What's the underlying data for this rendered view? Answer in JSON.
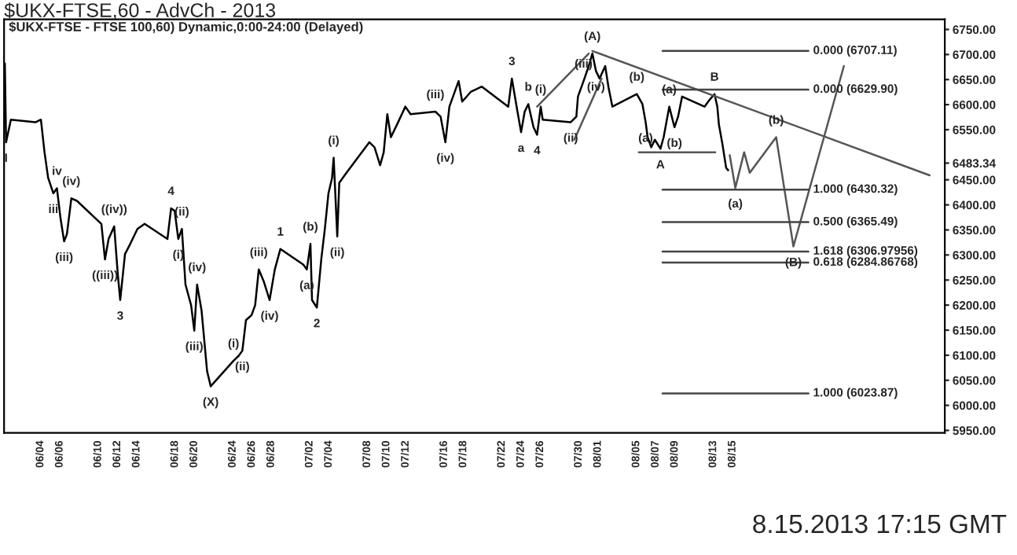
{
  "chart_data": {
    "type": "line",
    "title": "$UKX-FTSE,60 - AdvCh - 2013",
    "subtitle": "$UKX-FTSE - FTSE 100,60) Dynamic,0:00-24:00 (Delayed)",
    "series": [
      {
        "color": "#000000",
        "x": [
          "2013-05-31T07:00",
          "2013-05-31T10:00",
          "2013-05-31T22:00",
          "2013-06-03T12:00",
          "2013-06-04T01:00",
          "2013-06-04T10:00",
          "2013-06-04T19:00",
          "2013-06-05T08:00",
          "2013-06-05T17:00",
          "2013-06-06T02:00",
          "2013-06-06T11:00",
          "2013-06-06T18:00",
          "2013-06-07T05:00",
          "2013-06-07T19:00",
          "2013-06-10T08:00",
          "2013-06-10T17:00",
          "2013-06-11T02:00",
          "2013-06-11T16:00",
          "2013-06-12T01:00",
          "2013-06-12T07:00",
          "2013-06-12T19:00",
          "2013-06-13T08:00",
          "2013-06-14T02:00",
          "2013-06-14T20:00",
          "2013-06-17T05:00",
          "2013-06-17T14:00",
          "2013-06-17T23:00",
          "2013-06-18T08:00",
          "2013-06-18T17:00",
          "2013-06-19T02:00",
          "2013-06-19T16:00",
          "2013-06-20T00:00",
          "2013-06-20T07:00",
          "2013-06-20T18:00",
          "2013-06-21T08:00",
          "2013-06-21T17:00",
          "2013-06-24T02:00",
          "2013-06-24T15:00",
          "2013-06-25T00:00",
          "2013-06-25T09:00",
          "2013-06-25T23:00",
          "2013-06-26T08:00",
          "2013-06-26T17:00",
          "2013-06-27T06:00",
          "2013-06-27T20:00",
          "2013-06-28T09:00",
          "2013-06-28T23:00",
          "2013-07-01T08:00",
          "2013-07-01T17:00",
          "2013-07-02T02:00",
          "2013-07-02T06:00",
          "2013-07-02T18:00",
          "2013-07-03T05:00",
          "2013-07-03T14:00",
          "2013-07-03T23:00",
          "2013-07-04T08:00",
          "2013-07-04T12:00",
          "2013-07-04T21:00",
          "2013-07-05T02:00",
          "2013-07-05T20:00",
          "2013-07-08T05:00",
          "2013-07-08T18:00",
          "2013-07-09T08:00",
          "2013-07-09T17:00",
          "2013-07-10T02:00",
          "2013-07-10T11:00",
          "2013-07-11T05:00",
          "2013-07-11T23:00",
          "2013-07-12T12:00",
          "2013-07-15T02:00",
          "2013-07-15T15:00",
          "2013-07-16T03:00",
          "2013-07-16T13:00",
          "2013-07-17T12:00",
          "2013-07-17T21:00",
          "2013-07-18T19:00",
          "2013-07-19T22:00",
          "2013-07-22T16:00",
          "2013-07-23T01:00",
          "2013-07-23T15:00",
          "2013-07-24T00:00",
          "2013-07-24T09:00",
          "2013-07-24T18:00",
          "2013-07-25T07:00",
          "2013-07-25T16:00",
          "2013-07-26T01:00",
          "2013-07-26T06:00",
          "2013-07-29T04:00",
          "2013-07-29T18:00",
          "2013-07-29T22:00",
          "2013-07-30T12:00",
          "2013-07-31T01:00",
          "2013-07-31T10:00",
          "2013-07-31T19:00",
          "2013-08-01T04:00",
          "2013-08-01T18:00",
          "2013-08-02T02:00",
          "2013-08-02T12:00",
          "2013-08-05T01:00",
          "2013-08-05T15:00",
          "2013-08-05T23:00",
          "2013-08-06T04:00",
          "2013-08-06T13:00",
          "2013-08-06T22:00",
          "2013-08-07T12:00",
          "2013-08-07T20:00",
          "2013-08-08T10:00",
          "2013-08-08T23:00",
          "2013-08-09T08:00",
          "2013-08-09T18:00",
          "2013-08-12T02:00",
          "2013-08-12T16:00",
          "2013-08-13T03:00",
          "2013-08-13T10:00",
          "2013-08-13T14:00",
          "2013-08-13T23:00",
          "2013-08-14T08:00",
          "2013-08-14T13:00"
        ],
        "values": [
          6682,
          6525,
          6570,
          6565,
          6570,
          6505,
          6454,
          6423,
          6433,
          6373,
          6327,
          6342,
          6413,
          6408,
          6362,
          6291,
          6332,
          6357,
          6261,
          6210,
          6302,
          6322,
          6352,
          6362,
          6332,
          6393,
          6388,
          6332,
          6352,
          6241,
          6200,
          6149,
          6241,
          6190,
          6068,
          6038,
          6089,
          6099,
          6109,
          6170,
          6180,
          6200,
          6271,
          6246,
          6210,
          6271,
          6312,
          6281,
          6271,
          6322,
          6210,
          6195,
          6291,
          6352,
          6423,
          6454,
          6494,
          6337,
          6444,
          6464,
          6525,
          6515,
          6479,
          6505,
          6581,
          6535,
          6565,
          6596,
          6581,
          6586,
          6576,
          6525,
          6596,
          6647,
          6606,
          6626,
          6636,
          6596,
          6652,
          6586,
          6545,
          6586,
          6601,
          6555,
          6540,
          6596,
          6570,
          6565,
          6576,
          6616,
          6647,
          6677,
          6702,
          6667,
          6652,
          6677,
          6636,
          6596,
          6621,
          6601,
          6565,
          6535,
          6515,
          6530,
          6512,
          6535,
          6596,
          6555,
          6576,
          6616,
          6596,
          6611,
          6621,
          6596,
          6560,
          6520,
          6474,
          6469
        ]
      },
      {
        "color": "#555555",
        "x": [
          "2013-08-14T17:00",
          "2013-08-15T07:00",
          "2013-08-16T05:00",
          "2013-08-16T19:00",
          "2013-08-19T13:00",
          "2013-08-21T08:00",
          "2013-08-26T14:00"
        ],
        "values": [
          6499,
          6434,
          6505,
          6464,
          6535,
          6317,
          6677
        ]
      },
      {
        "color": "#555555",
        "x": [
          "2013-07-31T10:00",
          "2013-09-04T12:00"
        ],
        "values": [
          6707,
          6459
        ]
      },
      {
        "color": "#555555",
        "x": [
          "2013-08-05T06:00",
          "2013-08-13T05:00"
        ],
        "values": [
          6505,
          6505
        ]
      },
      {
        "color": "#555555",
        "x": [
          "2013-07-25T16:00",
          "2013-07-31T01:00"
        ],
        "values": [
          6596,
          6702
        ]
      },
      {
        "color": "#555555",
        "x": [
          "2013-07-29T13:00",
          "2013-08-01T09:00"
        ],
        "values": [
          6530,
          6652
        ]
      }
    ],
    "ref_lines": [
      {
        "axis": "y",
        "value": 6707.11,
        "label": "0.000 (6707.11)"
      },
      {
        "axis": "y",
        "value": 6629.9,
        "label": "0.000 (6629.90)"
      },
      {
        "axis": "y",
        "value": 6430.32,
        "label": "1.000 (6430.32)"
      },
      {
        "axis": "y",
        "value": 6365.49,
        "label": "0.500 (6365.49)"
      },
      {
        "axis": "y",
        "value": 6306.97956,
        "label": "1.618 (6306.97956)"
      },
      {
        "axis": "y",
        "value": 6284.86768,
        "label": "0.618 (6284.86768)"
      },
      {
        "axis": "y",
        "value": 6023.87,
        "label": "1.000 (6023.87)"
      }
    ],
    "annotations": [
      {
        "text": "I",
        "x": "2013-05-31T10:00",
        "y": 6525
      },
      {
        "text": "iii",
        "x": "2013-06-05T08:00",
        "y": 6423
      },
      {
        "text": "iv",
        "x": "2013-06-05T17:00",
        "y": 6433
      },
      {
        "text": "(iii)",
        "x": "2013-06-06T11:00",
        "y": 6327
      },
      {
        "text": "(iv)",
        "x": "2013-06-07T05:00",
        "y": 6413
      },
      {
        "text": "((iii))",
        "x": "2013-06-10T17:00",
        "y": 6291
      },
      {
        "text": "((iv))",
        "x": "2013-06-11T16:00",
        "y": 6357
      },
      {
        "text": "3",
        "x": "2013-06-12T07:00",
        "y": 6210
      },
      {
        "text": "4",
        "x": "2013-06-17T14:00",
        "y": 6393
      },
      {
        "text": "(ii)",
        "x": "2013-06-18T17:00",
        "y": 6352
      },
      {
        "text": "(i)",
        "x": "2013-06-18T08:00",
        "y": 6332
      },
      {
        "text": "(iv)",
        "x": "2013-06-20T07:00",
        "y": 6241
      },
      {
        "text": "(iii)",
        "x": "2013-06-20T00:00",
        "y": 6149
      },
      {
        "text": "(i)",
        "x": "2013-06-24T02:00",
        "y": 6089
      },
      {
        "text": "(ii)",
        "x": "2013-06-25T00:00",
        "y": 6109
      },
      {
        "text": "(X)",
        "x": "2013-06-21T17:00",
        "y": 6038
      },
      {
        "text": "(iii)",
        "x": "2013-06-26T17:00",
        "y": 6271
      },
      {
        "text": "(iv)",
        "x": "2013-06-27T20:00",
        "y": 6210
      },
      {
        "text": "1",
        "x": "2013-06-28T23:00",
        "y": 6312
      },
      {
        "text": "(b)",
        "x": "2013-07-02T02:00",
        "y": 6322
      },
      {
        "text": "(a)",
        "x": "2013-07-01T17:00",
        "y": 6271
      },
      {
        "text": "2",
        "x": "2013-07-02T18:00",
        "y": 6195
      },
      {
        "text": "(i)",
        "x": "2013-07-04T12:00",
        "y": 6494
      },
      {
        "text": "(ii)",
        "x": "2013-07-04T21:00",
        "y": 6337
      },
      {
        "text": "(iii)",
        "x": "2013-07-15T02:00",
        "y": 6586
      },
      {
        "text": "(iv)",
        "x": "2013-07-16T03:00",
        "y": 6525
      },
      {
        "text": "3",
        "x": "2013-07-23T01:00",
        "y": 6652
      },
      {
        "text": "b",
        "x": "2013-07-24T18:00",
        "y": 6601
      },
      {
        "text": "a",
        "x": "2013-07-24T00:00",
        "y": 6545
      },
      {
        "text": "4",
        "x": "2013-07-25T16:00",
        "y": 6540
      },
      {
        "text": "(i)",
        "x": "2013-07-26T01:00",
        "y": 6596
      },
      {
        "text": "(ii)",
        "x": "2013-07-29T04:00",
        "y": 6565
      },
      {
        "text": "(iii)",
        "x": "2013-07-30T12:00",
        "y": 6647
      },
      {
        "text": "(iv)",
        "x": "2013-07-31T19:00",
        "y": 6667
      },
      {
        "text": "(A)",
        "x": "2013-07-31T10:00",
        "y": 6702
      },
      {
        "text": "(b)",
        "x": "2013-08-05T01:00",
        "y": 6621
      },
      {
        "text": "(a)",
        "x": "2013-08-05T23:00",
        "y": 6565
      },
      {
        "text": "A",
        "x": "2013-08-07T12:00",
        "y": 6512
      },
      {
        "text": "(a)",
        "x": "2013-08-08T10:00",
        "y": 6596
      },
      {
        "text": "(b)",
        "x": "2013-08-08T23:00",
        "y": 6555
      },
      {
        "text": "B",
        "x": "2013-08-13T03:00",
        "y": 6621
      },
      {
        "text": "(b)",
        "x": "2013-08-19T13:00",
        "y": 6535
      },
      {
        "text": "(a)",
        "x": "2013-08-15T07:00",
        "y": 6434
      },
      {
        "text": "(B)",
        "x": "2013-08-21T08:00",
        "y": 6317
      },
      "8.15.2013 17:15 GMT"
    ],
    "xlim": [
      "2013-05-31T05:00",
      "2013-09-06T02:00"
    ],
    "xticks": [
      {
        "value": "2013-06-04",
        "label": "06/04"
      },
      {
        "value": "2013-06-06",
        "label": "06/06"
      },
      {
        "value": "2013-06-10",
        "label": "06/10"
      },
      {
        "value": "2013-06-12",
        "label": "06/12"
      },
      {
        "value": "2013-06-14",
        "label": "06/14"
      },
      {
        "value": "2013-06-18",
        "label": "06/18"
      },
      {
        "value": "2013-06-20",
        "label": "06/20"
      },
      {
        "value": "2013-06-24",
        "label": "06/24"
      },
      {
        "value": "2013-06-26",
        "label": "06/26"
      },
      {
        "value": "2013-06-28",
        "label": "06/28"
      },
      {
        "value": "2013-07-02",
        "label": "07/02"
      },
      {
        "value": "2013-07-04",
        "label": "07/04"
      },
      {
        "value": "2013-07-08",
        "label": "07/08"
      },
      {
        "value": "2013-07-10",
        "label": "07/10"
      },
      {
        "value": "2013-07-12",
        "label": "07/12"
      },
      {
        "value": "2013-07-16",
        "label": "07/16"
      },
      {
        "value": "2013-07-18",
        "label": "07/18"
      },
      {
        "value": "2013-07-22",
        "label": "07/22"
      },
      {
        "value": "2013-07-24",
        "label": "07/24"
      },
      {
        "value": "2013-07-26",
        "label": "07/26"
      },
      {
        "value": "2013-07-30",
        "label": "07/30"
      },
      {
        "value": "2013-08-01",
        "label": "08/01"
      },
      {
        "value": "2013-08-05",
        "label": "08/05"
      },
      {
        "value": "2013-08-07",
        "label": "08/07"
      },
      {
        "value": "2013-08-09",
        "label": "08/09"
      },
      {
        "value": "2013-08-13",
        "label": "08/13"
      },
      {
        "value": "2013-08-15",
        "label": "08/15"
      }
    ],
    "ylim": [
      5945,
      6770
    ],
    "yticks": [
      {
        "value": 5950,
        "label": "5950.00"
      },
      {
        "value": 6000,
        "label": "6000.00"
      },
      {
        "value": 6050,
        "label": "6050.00"
      },
      {
        "value": 6100,
        "label": "6100.00"
      },
      {
        "value": 6150,
        "label": "6150.00"
      },
      {
        "value": 6200,
        "label": "6200.00"
      },
      {
        "value": 6250,
        "label": "6250.00"
      },
      {
        "value": 6300,
        "label": "6300.00"
      },
      {
        "value": 6350,
        "label": "6350.00"
      },
      {
        "value": 6400,
        "label": "6400.00"
      },
      {
        "value": 6450,
        "label": "6450.00"
      },
      {
        "value": 6483.34,
        "label": "6483.34"
      },
      {
        "value": 6550,
        "label": "6550.00"
      },
      {
        "value": 6600,
        "label": "6600.00"
      },
      {
        "value": 6650,
        "label": "6650.00"
      },
      {
        "value": 6700,
        "label": "6700.00"
      },
      {
        "value": 6750,
        "label": "6750.00"
      }
    ],
    "grid": false,
    "legend": false
  }
}
